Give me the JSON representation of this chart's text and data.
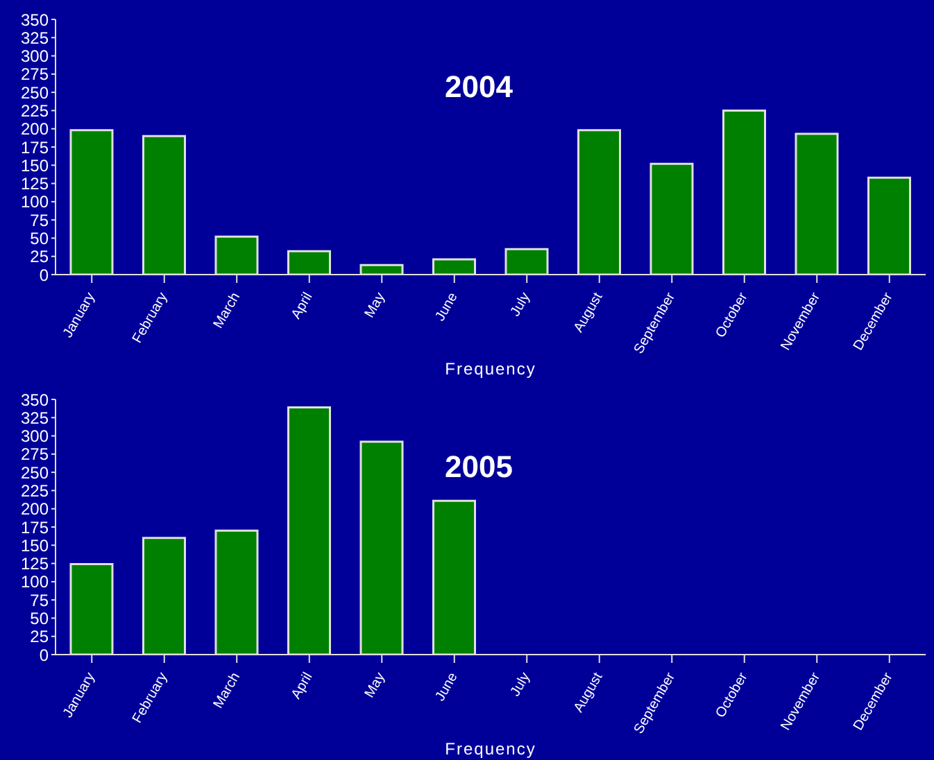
{
  "chart_data": [
    {
      "type": "bar",
      "title": "2004",
      "xlabel": "Frequency",
      "categories": [
        "January",
        "February",
        "March",
        "April",
        "May",
        "June",
        "July",
        "August",
        "September",
        "October",
        "November",
        "December"
      ],
      "values": [
        198,
        190,
        52,
        32,
        13,
        21,
        35,
        198,
        152,
        225,
        193,
        133
      ],
      "color": "#008000",
      "ylim": [
        0,
        350
      ],
      "yticks": [
        0,
        25,
        50,
        75,
        100,
        125,
        150,
        175,
        200,
        225,
        250,
        275,
        300,
        325,
        350
      ],
      "grid": false
    },
    {
      "type": "bar",
      "title": "2005",
      "xlabel": "Frequency",
      "categories": [
        "January",
        "February",
        "March",
        "April",
        "May",
        "June",
        "July",
        "August",
        "September",
        "October",
        "November",
        "December"
      ],
      "values": [
        124,
        160,
        170,
        339,
        292,
        211,
        null,
        null,
        null,
        null,
        null,
        null
      ],
      "color": "#008000",
      "ylim": [
        0,
        350
      ],
      "yticks": [
        0,
        25,
        50,
        75,
        100,
        125,
        150,
        175,
        200,
        225,
        250,
        275,
        300,
        325,
        350
      ],
      "grid": false
    }
  ]
}
